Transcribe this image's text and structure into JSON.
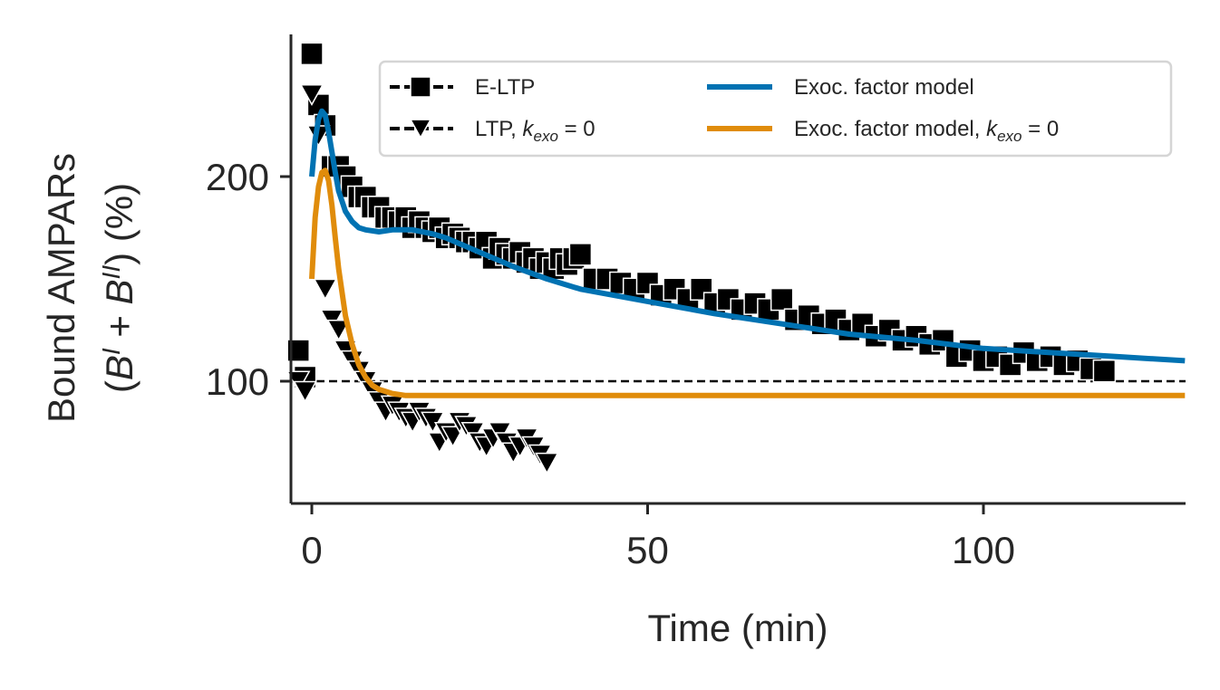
{
  "chart_data": {
    "type": "line",
    "xlabel": "Time (min)",
    "ylabel_line1": "Bound AMPARs",
    "ylabel_line2": "(B^I + B^II) (%)",
    "xlim": [
      -3,
      130
    ],
    "ylim": [
      40,
      270
    ],
    "xticks": [
      0,
      50,
      100
    ],
    "yticks": [
      100,
      200
    ],
    "reference_line": {
      "y": 100,
      "style": "dashed"
    },
    "grid": false,
    "legend_position": "top-right",
    "colors": {
      "exp": "#000000",
      "model": "#0072b2",
      "model_kexo0": "#e08c0b",
      "axis": "#262626"
    },
    "series": [
      {
        "name": "E-LTP",
        "kind": "markers",
        "marker": "square",
        "color": "#000000",
        "x": [
          -2,
          -1,
          0,
          1,
          2,
          3,
          4,
          5,
          6,
          7,
          8,
          9,
          10,
          11,
          12,
          13,
          14,
          15,
          16,
          17,
          18,
          19,
          20,
          21,
          22,
          23,
          24,
          25,
          26,
          27,
          28,
          29,
          30,
          31,
          32,
          33,
          34,
          35,
          36,
          37,
          38,
          39,
          40,
          42,
          44,
          46,
          48,
          50,
          52,
          54,
          56,
          58,
          60,
          62,
          64,
          66,
          68,
          70,
          72,
          74,
          76,
          78,
          80,
          82,
          84,
          86,
          88,
          90,
          92,
          94,
          96,
          98,
          100,
          102,
          104,
          106,
          108,
          110,
          112,
          114,
          116,
          118
        ],
        "y": [
          115,
          102,
          260,
          235,
          225,
          205,
          205,
          200,
          195,
          190,
          190,
          185,
          185,
          180,
          180,
          178,
          180,
          175,
          178,
          175,
          173,
          175,
          170,
          172,
          170,
          168,
          168,
          165,
          168,
          160,
          165,
          162,
          160,
          163,
          158,
          160,
          155,
          158,
          155,
          160,
          157,
          160,
          162,
          150,
          150,
          148,
          145,
          148,
          142,
          145,
          140,
          145,
          138,
          140,
          135,
          138,
          135,
          140,
          130,
          132,
          128,
          130,
          125,
          128,
          122,
          125,
          120,
          122,
          118,
          120,
          112,
          115,
          110,
          112,
          108,
          114,
          110,
          112,
          108,
          110,
          106,
          105
        ]
      },
      {
        "name": "LTP, k_exo = 0",
        "kind": "markers",
        "marker": "triangle-down",
        "color": "#000000",
        "x": [
          -2,
          -1,
          0,
          1,
          2,
          3,
          4,
          5,
          6,
          7,
          8,
          9,
          10,
          11,
          12,
          13,
          14,
          15,
          16,
          17,
          18,
          19,
          20,
          21,
          22,
          23,
          24,
          25,
          26,
          27,
          28,
          29,
          30,
          31,
          32,
          33,
          34,
          35
        ],
        "y": [
          100,
          95,
          240,
          220,
          145,
          130,
          125,
          115,
          110,
          105,
          100,
          95,
          90,
          85,
          88,
          85,
          82,
          80,
          85,
          82,
          80,
          70,
          75,
          73,
          80,
          78,
          75,
          70,
          68,
          72,
          75,
          70,
          65,
          68,
          72,
          68,
          64,
          60
        ]
      },
      {
        "name": "Exoc. factor model",
        "kind": "line",
        "color": "#0072b2",
        "x": [
          0,
          0.5,
          1,
          1.5,
          2,
          2.5,
          3,
          3.5,
          4,
          5,
          6,
          7,
          8,
          10,
          12,
          15,
          18,
          20,
          25,
          30,
          35,
          40,
          50,
          60,
          70,
          80,
          90,
          100,
          110,
          120,
          130
        ],
        "y": [
          200,
          218,
          228,
          232,
          230,
          222,
          212,
          202,
          193,
          183,
          178,
          175,
          174,
          173,
          174,
          174,
          172,
          170,
          163,
          156,
          150,
          145,
          139,
          133,
          128,
          123,
          120,
          116,
          114,
          112,
          110
        ]
      },
      {
        "name": "Exoc. factor model, k_exo = 0",
        "kind": "line",
        "color": "#e08c0b",
        "x": [
          0,
          0.5,
          1,
          1.5,
          2,
          2.5,
          3,
          3.5,
          4,
          5,
          6,
          7,
          8,
          9,
          10,
          12,
          14,
          16,
          20,
          30,
          130
        ],
        "y": [
          150,
          180,
          195,
          202,
          203,
          198,
          186,
          170,
          155,
          132,
          118,
          108,
          102,
          98,
          96,
          94,
          93,
          93,
          93,
          93,
          93
        ]
      }
    ]
  }
}
